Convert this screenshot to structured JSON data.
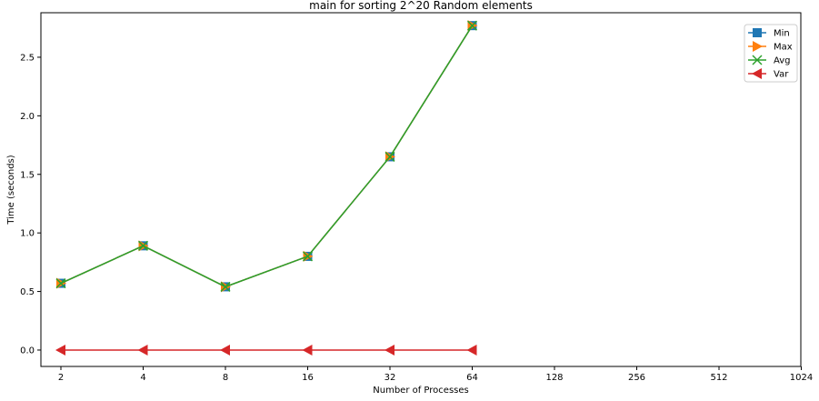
{
  "chart_data": {
    "type": "line",
    "title": "main for sorting 2^20 Random elements",
    "xlabel": "Number of Processes",
    "ylabel": "Time (seconds)",
    "x_ticks": [
      "2",
      "4",
      "8",
      "16",
      "32",
      "64",
      "128",
      "256",
      "512",
      "1024"
    ],
    "y_ticks": [
      "0.0",
      "0.5",
      "1.0",
      "1.5",
      "2.0",
      "2.5"
    ],
    "ylim": [
      -0.14,
      2.88
    ],
    "grid": false,
    "legend_position": "top-right",
    "series": [
      {
        "name": "Min",
        "marker": "square",
        "color": "#1f77b4",
        "x": [
          2,
          4,
          8,
          16,
          32,
          64
        ],
        "values": [
          0.57,
          0.89,
          0.54,
          0.8,
          1.65,
          2.77
        ]
      },
      {
        "name": "Max",
        "marker": "triangle-right",
        "color": "#ff7f0e",
        "x": [
          2,
          4,
          8,
          16,
          32,
          64
        ],
        "values": [
          0.57,
          0.89,
          0.54,
          0.8,
          1.65,
          2.77
        ]
      },
      {
        "name": "Avg",
        "marker": "x",
        "color": "#2ca02c",
        "x": [
          2,
          4,
          8,
          16,
          32,
          64
        ],
        "values": [
          0.57,
          0.89,
          0.54,
          0.8,
          1.65,
          2.77
        ]
      },
      {
        "name": "Var",
        "marker": "triangle-left",
        "color": "#d62728",
        "x": [
          2,
          4,
          8,
          16,
          32,
          64
        ],
        "values": [
          0.0,
          0.0,
          0.0,
          0.0,
          0.0,
          0.0
        ]
      }
    ]
  }
}
